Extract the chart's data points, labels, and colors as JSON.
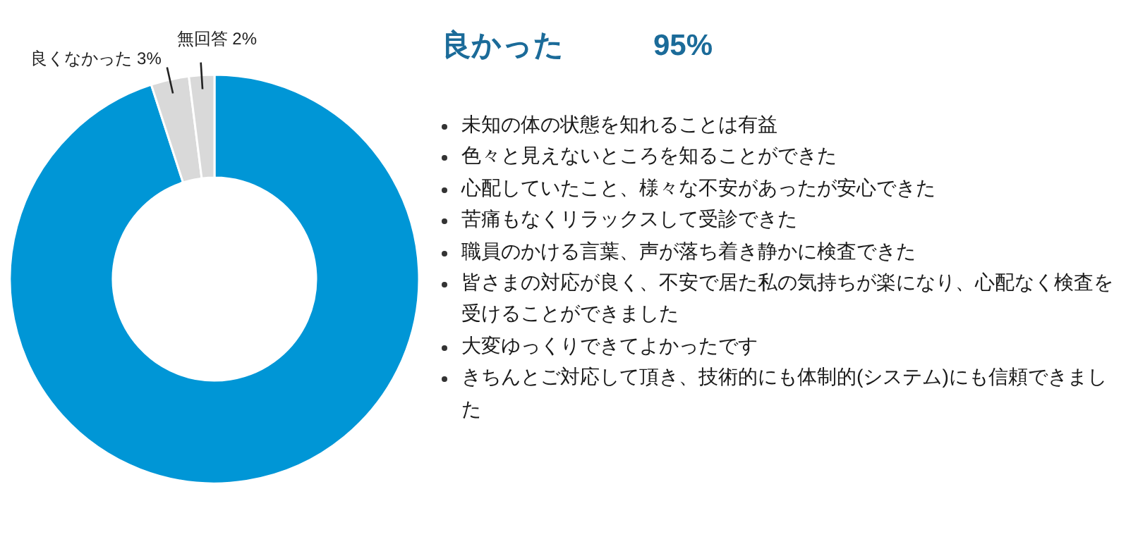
{
  "chart_data": {
    "type": "donut",
    "title": "良かった　　　95%",
    "categories": [
      null,
      "良くなかった",
      "無回答"
    ],
    "values": [
      95,
      3,
      2
    ],
    "value_labels": [
      null,
      "3%",
      "2%"
    ],
    "colors": [
      "#0096d6",
      "#d9d9d9",
      "#d9d9d9"
    ],
    "annotations": [
      "未知の体の状態を知れることは有益",
      "色々と見えないところを知ることができた",
      "心配していたこと、様々な不安があったが安心できた",
      "苦痛もなくリラックスして受診できた",
      "職員のかける言葉、声が落ち着き静かに検査できた",
      "皆さまの対応が良く、不安で居た私の気持ちが楽になり、心配なく検査を受けることができました",
      "大変ゆっくりできてよかったです",
      "きちんとご対応して頂き、技術的にも体制的(システム)にも信頼できました"
    ]
  }
}
